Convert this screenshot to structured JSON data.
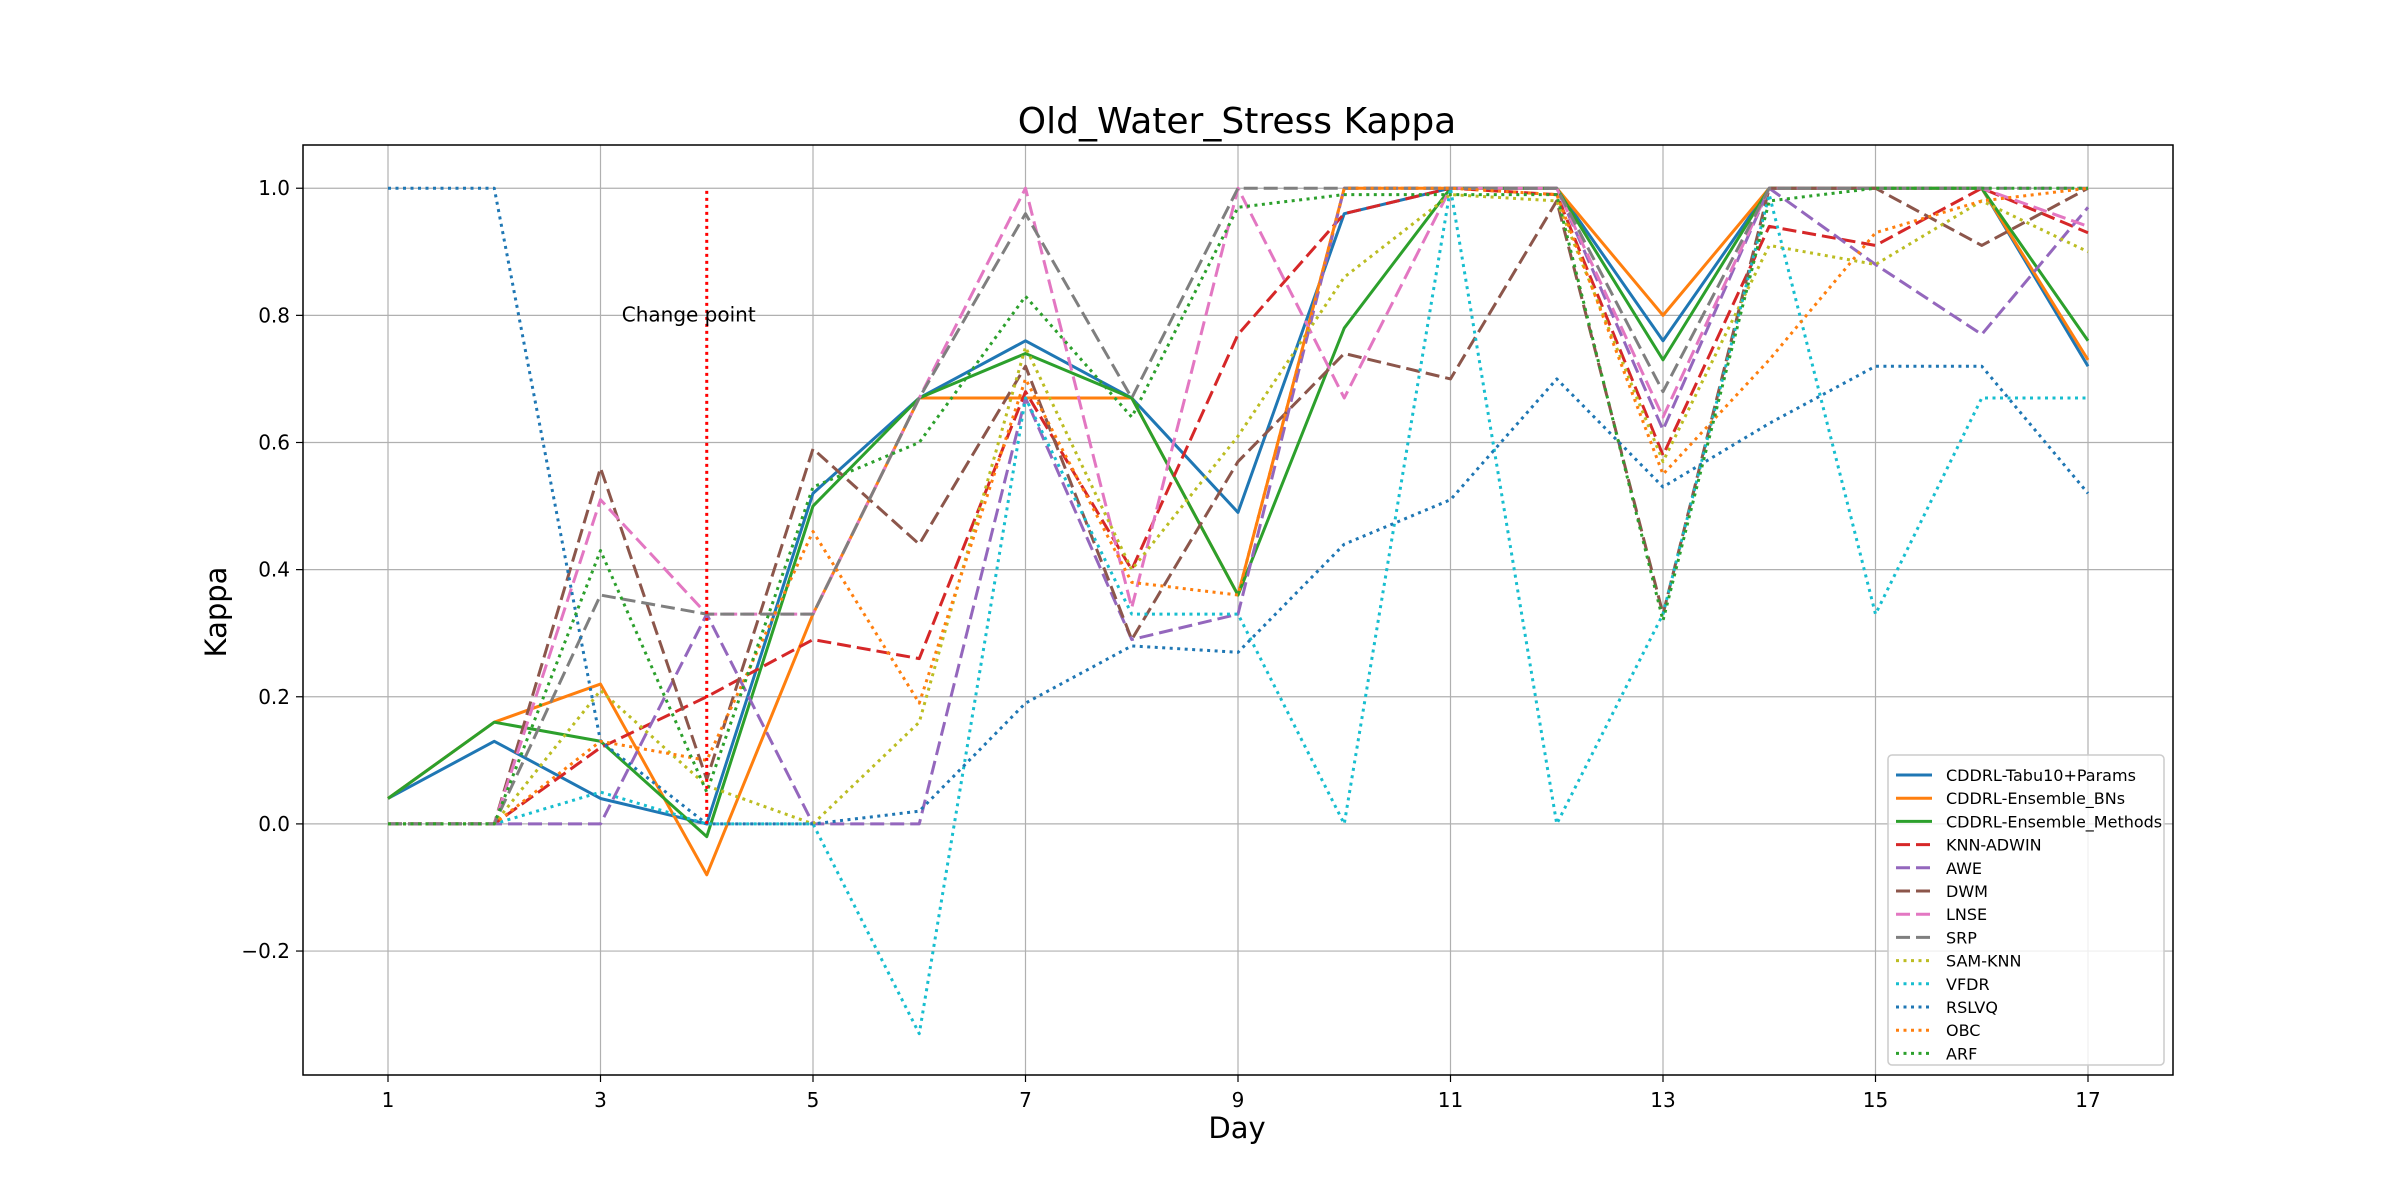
{
  "chart_data": {
    "type": "line",
    "title": "Old_Water_Stress Kappa",
    "xlabel": "Day",
    "ylabel": "Kappa",
    "x": [
      1,
      2,
      3,
      4,
      5,
      6,
      7,
      8,
      9,
      10,
      11,
      12,
      13,
      14,
      15,
      16,
      17
    ],
    "xticks": [
      1,
      3,
      5,
      7,
      9,
      11,
      13,
      15,
      17
    ],
    "yticks": [
      -0.2,
      0.0,
      0.2,
      0.4,
      0.6,
      0.8,
      1.0
    ],
    "xlim": [
      0.2,
      17.8
    ],
    "ylim": [
      -0.395,
      1.068
    ],
    "grid": true,
    "legend_position": "lower right",
    "annotation": {
      "text": "Change point",
      "x": 4,
      "y_from": 0.0,
      "y_to": 1.0,
      "color": "#ff0000",
      "text_x": 3.2,
      "text_y": 0.79
    },
    "series": [
      {
        "name": "CDDRL-Tabu10+Params",
        "color": "#1f77b4",
        "style": "solid",
        "values": [
          0.04,
          0.13,
          0.04,
          0.0,
          0.52,
          0.67,
          0.76,
          0.67,
          0.49,
          0.96,
          1.0,
          1.0,
          0.76,
          1.0,
          1.0,
          1.0,
          0.72
        ]
      },
      {
        "name": "CDDRL-Ensemble_BNs",
        "color": "#ff7f0e",
        "style": "solid",
        "values": [
          0.04,
          0.16,
          0.22,
          -0.08,
          0.33,
          0.67,
          0.67,
          0.67,
          0.36,
          1.0,
          1.0,
          1.0,
          0.8,
          1.0,
          1.0,
          1.0,
          0.73
        ]
      },
      {
        "name": "CDDRL-Ensemble_Methods",
        "color": "#2ca02c",
        "style": "solid",
        "values": [
          0.04,
          0.16,
          0.13,
          -0.02,
          0.5,
          0.67,
          0.74,
          0.67,
          0.36,
          0.78,
          1.0,
          1.0,
          0.73,
          1.0,
          1.0,
          1.0,
          0.76
        ]
      },
      {
        "name": "KNN-ADWIN",
        "color": "#d62728",
        "style": "dashed",
        "values": [
          0.0,
          0.0,
          0.12,
          0.2,
          0.29,
          0.26,
          0.68,
          0.4,
          0.77,
          0.96,
          1.0,
          0.99,
          0.58,
          0.94,
          0.91,
          1.0,
          0.93
        ]
      },
      {
        "name": "AWE",
        "color": "#9467bd",
        "style": "dashed",
        "values": [
          0.0,
          0.0,
          0.0,
          0.33,
          0.0,
          0.0,
          0.67,
          0.29,
          0.33,
          1.0,
          1.0,
          1.0,
          0.62,
          1.0,
          0.88,
          0.77,
          0.97
        ]
      },
      {
        "name": "DWM",
        "color": "#8c564b",
        "style": "dashed",
        "values": [
          0.0,
          0.0,
          0.56,
          0.07,
          0.59,
          0.44,
          0.72,
          0.29,
          0.57,
          0.74,
          0.7,
          0.98,
          0.33,
          1.0,
          1.0,
          0.91,
          1.0
        ]
      },
      {
        "name": "LNSE",
        "color": "#e377c2",
        "style": "dashed",
        "values": [
          0.0,
          0.0,
          0.51,
          0.33,
          0.33,
          0.67,
          1.0,
          0.34,
          1.0,
          0.67,
          1.0,
          1.0,
          0.64,
          1.0,
          1.0,
          1.0,
          0.94
        ]
      },
      {
        "name": "SRP",
        "color": "#7f7f7f",
        "style": "dashed",
        "values": [
          0.0,
          0.0,
          0.36,
          0.33,
          0.33,
          0.67,
          0.96,
          0.67,
          1.0,
          1.0,
          1.0,
          1.0,
          0.68,
          1.0,
          1.0,
          1.0,
          1.0
        ]
      },
      {
        "name": "SAM-KNN",
        "color": "#bcbd22",
        "style": "dotted",
        "values": [
          0.0,
          0.0,
          0.21,
          0.06,
          0.0,
          0.16,
          0.75,
          0.4,
          0.61,
          0.86,
          0.99,
          0.98,
          0.57,
          0.91,
          0.88,
          0.98,
          0.9
        ]
      },
      {
        "name": "VFDR",
        "color": "#17becf",
        "style": "dotted",
        "values": [
          0.0,
          0.0,
          0.05,
          0.0,
          0.0,
          -0.33,
          0.67,
          0.33,
          0.33,
          0.0,
          1.0,
          0.0,
          0.33,
          0.99,
          0.33,
          0.67,
          0.67
        ]
      },
      {
        "name": "RSLVQ",
        "color": "#1f77b4",
        "style": "dotted",
        "values": [
          1.0,
          1.0,
          0.13,
          0.0,
          0.0,
          0.02,
          0.19,
          0.28,
          0.27,
          0.44,
          0.51,
          0.7,
          0.53,
          0.63,
          0.72,
          0.72,
          0.52
        ]
      },
      {
        "name": "OBC",
        "color": "#ff7f0e",
        "style": "dotted",
        "values": [
          0.0,
          0.0,
          0.13,
          0.1,
          0.46,
          0.19,
          0.7,
          0.38,
          0.36,
          1.0,
          1.0,
          0.99,
          0.55,
          0.73,
          0.93,
          0.98,
          1.0
        ]
      },
      {
        "name": "ARF",
        "color": "#2ca02c",
        "style": "dotted",
        "values": [
          0.0,
          0.0,
          0.43,
          0.05,
          0.53,
          0.6,
          0.83,
          0.64,
          0.97,
          0.99,
          0.99,
          0.99,
          0.32,
          0.98,
          1.0,
          1.0,
          1.0
        ]
      }
    ]
  }
}
